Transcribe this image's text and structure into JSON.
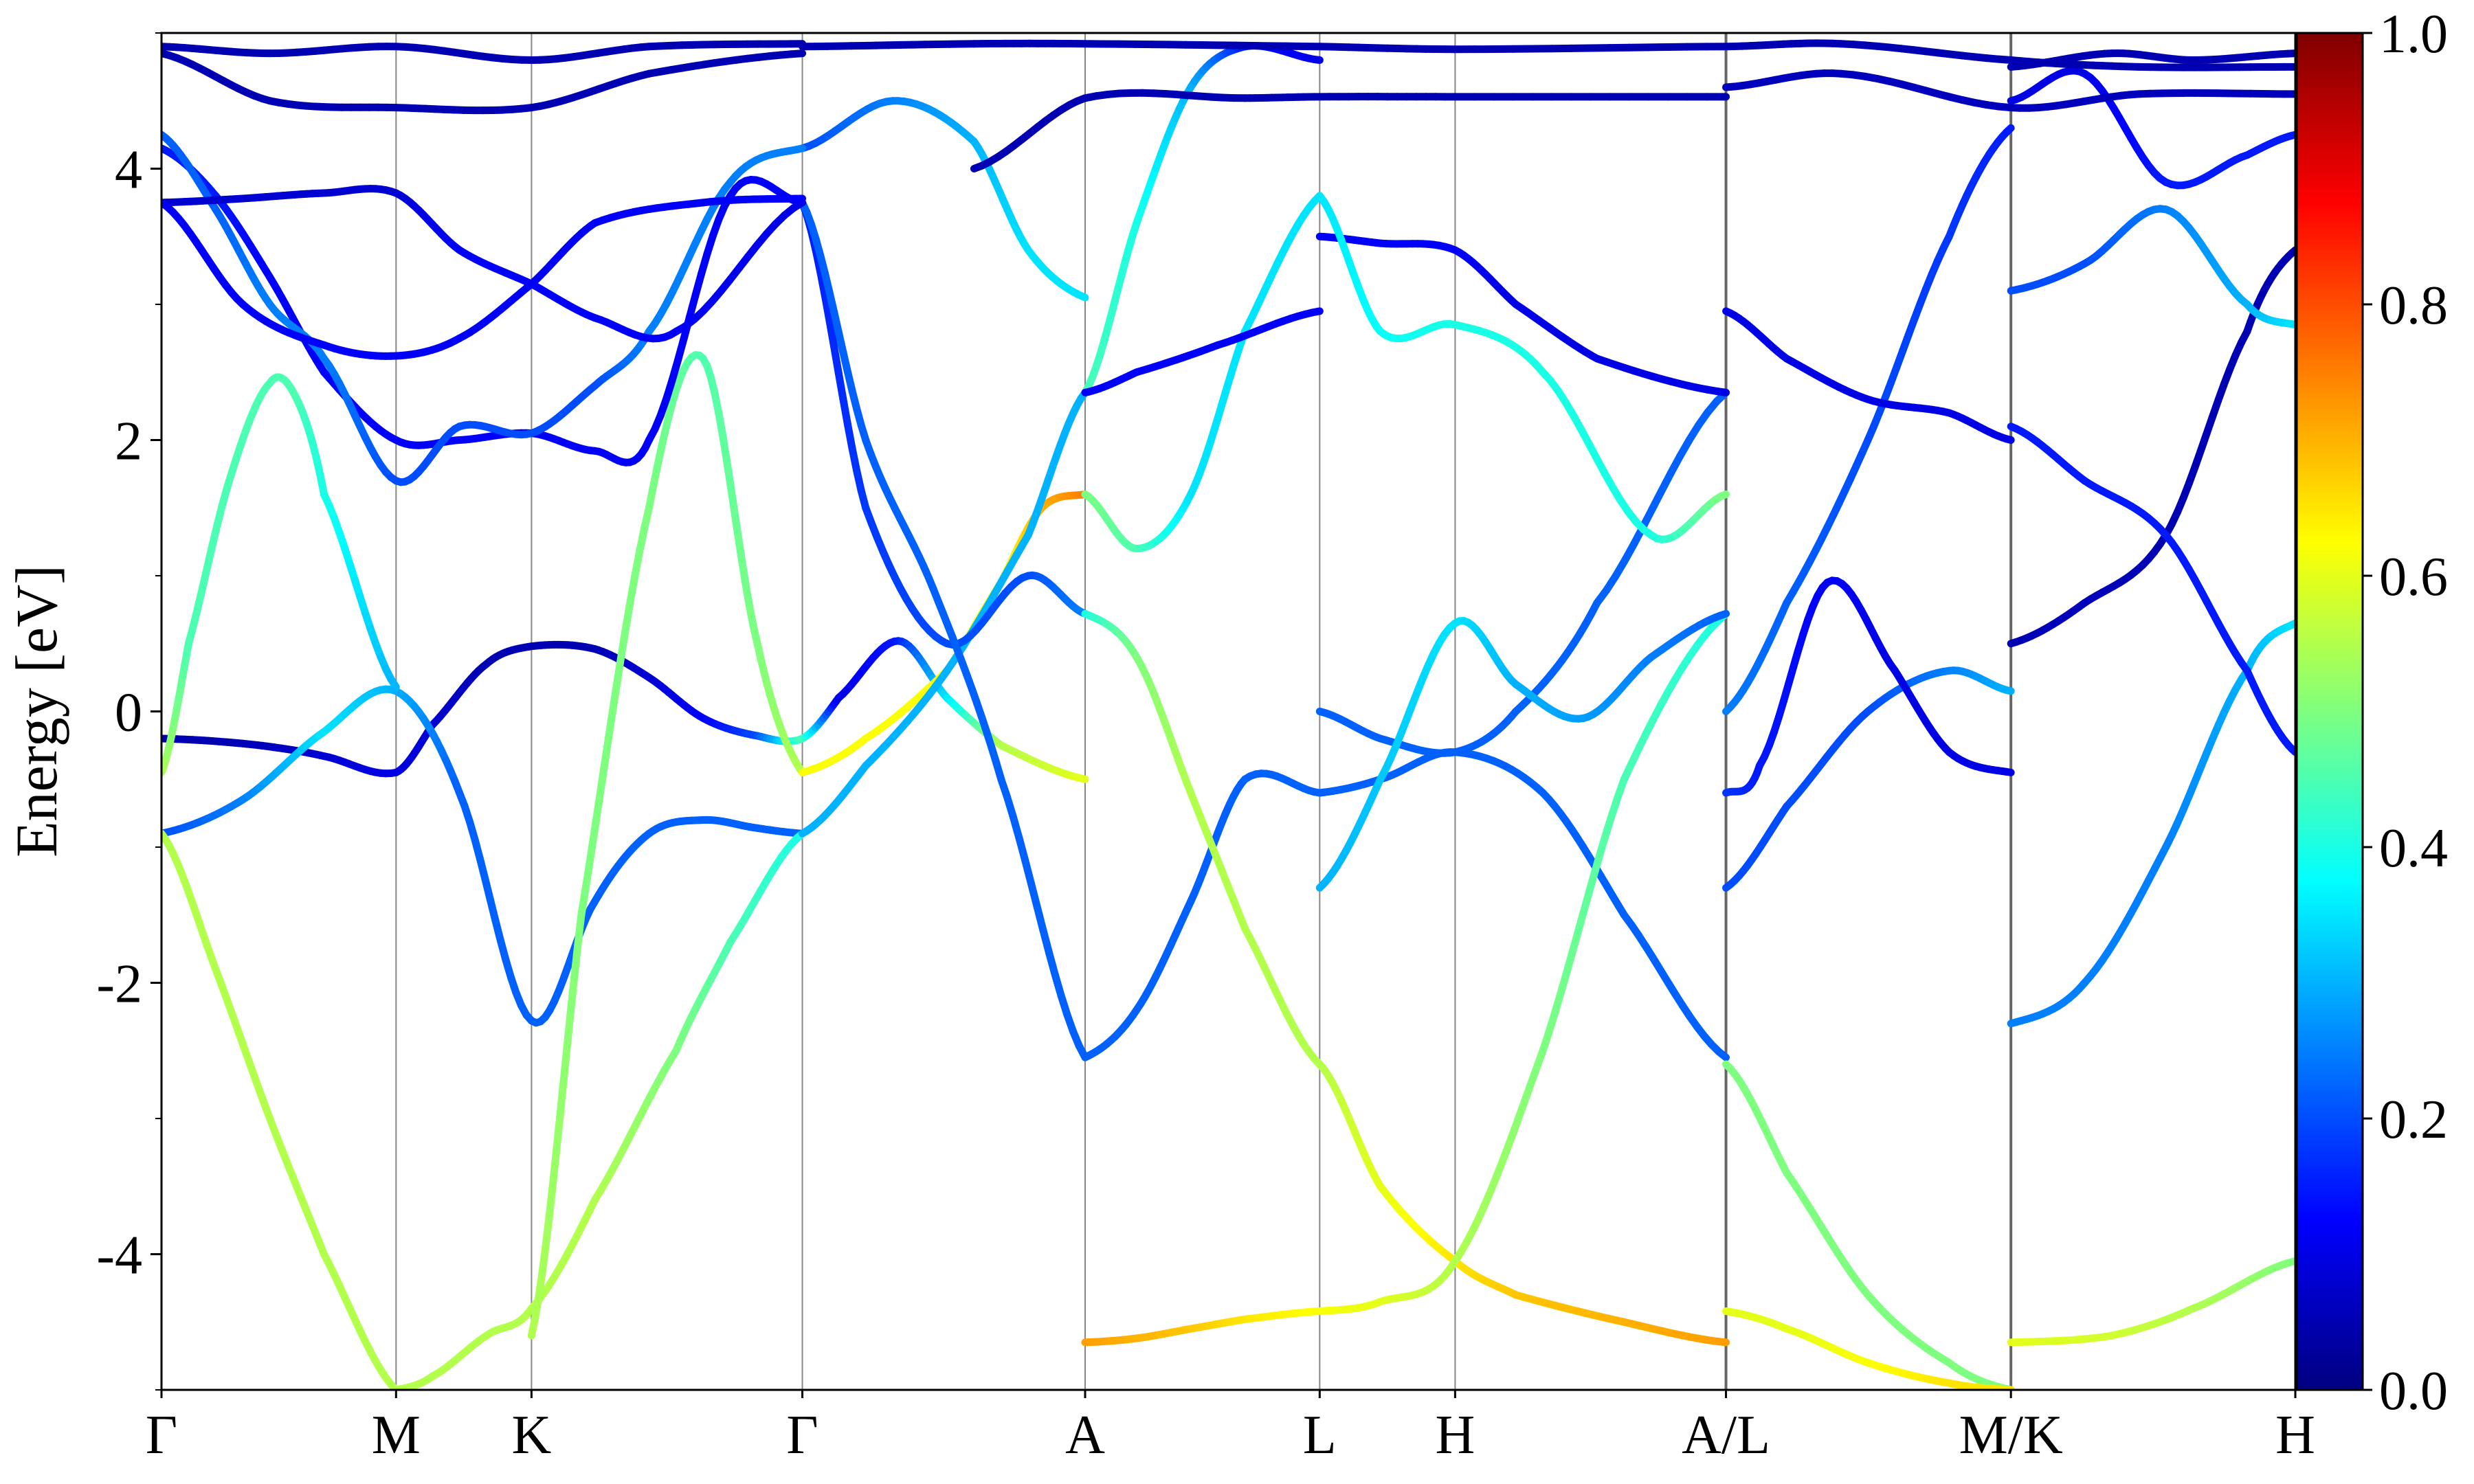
{
  "chart_data": {
    "type": "line",
    "chart_kind": "electronic band structure with projected weight colouring",
    "ylabel": "Energy [eV]",
    "ylim": [
      -5,
      5
    ],
    "y_major_ticks": [
      -4,
      -2,
      0,
      2,
      4
    ],
    "y_major_tick_labels": [
      "-4",
      "-2",
      "0",
      "2",
      "4"
    ],
    "y_minor_ticks": [
      -5,
      -3,
      -1,
      1,
      3,
      5
    ],
    "kpoint_labels": [
      "Γ",
      "M",
      "K",
      "Γ",
      "A",
      "L",
      "H",
      "A/L",
      "M/K",
      "H"
    ],
    "kpoint_positions": [
      0,
      0.866,
      1.366,
      2.366,
      3.41,
      4.276,
      4.776,
      5.776,
      6.828,
      7.878
    ],
    "xlim": [
      0,
      7.878
    ],
    "grid": "vertical lines at k-points",
    "legend": "none",
    "colorbar": {
      "label": "",
      "range": [
        0.0,
        1.0
      ],
      "ticks": [
        0.0,
        0.2,
        0.4,
        0.6,
        0.8,
        1.0
      ],
      "tick_labels": [
        "0.0",
        "0.2",
        "0.4",
        "0.6",
        "0.8",
        "1.0"
      ],
      "colormap": "jet",
      "colormap_stops": [
        "#00007f",
        "#0000ff",
        "#007fff",
        "#00ffff",
        "#7fff7f",
        "#ffff00",
        "#ff7f00",
        "#ff0000",
        "#7f0000"
      ],
      "placement": "right"
    },
    "series": [
      {
        "x": [
          0,
          0.2,
          0.4,
          0.6,
          0.866,
          1.0,
          1.2,
          1.366,
          1.6,
          1.8,
          2.0,
          2.2,
          2.366,
          2.5,
          2.72,
          2.9,
          3.1,
          3.41
        ],
        "y": [
          -0.2,
          -0.22,
          -0.26,
          -0.33,
          -0.45,
          -0.1,
          0.35,
          0.48,
          0.46,
          0.25,
          -0.05,
          -0.18,
          -0.2,
          0.1,
          0.52,
          0.1,
          -0.25,
          -0.5
        ],
        "w": [
          0.05,
          0.05,
          0.06,
          0.08,
          0.1,
          0.08,
          0.05,
          0.05,
          0.05,
          0.08,
          0.12,
          0.2,
          0.45,
          0.1,
          0.15,
          0.35,
          0.55,
          0.6
        ]
      },
      {
        "x": [
          0,
          0.3,
          0.6,
          0.866,
          1.1,
          1.366,
          1.6,
          1.8,
          2.0,
          2.2,
          2.366
        ],
        "y": [
          -0.9,
          -0.65,
          -0.15,
          0.15,
          -0.6,
          -2.28,
          -1.4,
          -0.9,
          -0.8,
          -0.86,
          -0.9
        ],
        "w": [
          0.2,
          0.25,
          0.35,
          0.3,
          0.22,
          0.22,
          0.22,
          0.22,
          0.22,
          0.22,
          0.22
        ]
      },
      {
        "x": [
          0,
          0.2,
          0.4,
          0.6,
          0.866
        ],
        "y": [
          -0.9,
          -1.9,
          -3.0,
          -4.0,
          -5.0
        ],
        "w": [
          0.55,
          0.55,
          0.55,
          0.55,
          0.55
        ]
      },
      {
        "x": [
          0,
          0.1,
          0.25,
          0.4,
          0.5,
          0.6,
          0.866
        ],
        "y": [
          -0.45,
          0.5,
          1.7,
          2.42,
          2.3,
          1.6,
          0.18
        ],
        "w": [
          0.55,
          0.45,
          0.45,
          0.45,
          0.45,
          0.4,
          0.3
        ]
      },
      {
        "x": [
          0.866,
          1.0,
          1.2,
          1.366,
          1.6,
          1.9,
          2.1,
          2.366
        ],
        "y": [
          -5.0,
          -4.9,
          -4.6,
          -4.4,
          -3.6,
          -2.5,
          -1.7,
          -0.9
        ],
        "w": [
          0.55,
          0.55,
          0.55,
          0.55,
          0.55,
          0.5,
          0.45,
          0.4
        ]
      },
      {
        "x": [
          1.366,
          1.55,
          1.8,
          2.0,
          2.2,
          2.366
        ],
        "y": [
          -4.6,
          -1.5,
          1.5,
          2.6,
          0.5,
          -0.45
        ],
        "w": [
          0.55,
          0.5,
          0.5,
          0.45,
          0.5,
          0.55
        ]
      },
      {
        "x": [
          2.366,
          2.6,
          2.9,
          3.1,
          3.25,
          3.41
        ],
        "y": [
          -0.45,
          -0.2,
          0.3,
          0.95,
          1.5,
          1.6
        ],
        "w": [
          0.62,
          0.62,
          0.62,
          0.62,
          0.7,
          0.75
        ]
      },
      {
        "x": [
          2.366,
          2.6,
          2.9,
          3.2,
          3.41
        ],
        "y": [
          -0.9,
          -0.4,
          0.3,
          1.3,
          2.35
        ],
        "w": [
          0.3,
          0.3,
          0.3,
          0.3,
          0.3
        ]
      },
      {
        "x": [
          2.366,
          2.6,
          2.9,
          3.2,
          3.41
        ],
        "y": [
          3.75,
          1.5,
          0.5,
          1.0,
          0.72
        ],
        "w": [
          0.15,
          0.18,
          0.2,
          0.2,
          0.25
        ]
      },
      {
        "x": [
          2.366,
          2.7,
          3.0,
          3.2,
          3.41
        ],
        "y": [
          4.15,
          4.5,
          4.2,
          3.4,
          3.05
        ],
        "w": [
          0.2,
          0.25,
          0.3,
          0.35,
          0.35
        ]
      },
      {
        "x": [
          2.366,
          2.6,
          2.85,
          3.1,
          3.41
        ],
        "y": [
          3.75,
          2.0,
          0.9,
          -0.5,
          -2.55
        ],
        "w": [
          0.22,
          0.22,
          0.22,
          0.22,
          0.22
        ]
      },
      {
        "x": [
          3.41,
          3.6,
          3.8,
          4.0,
          4.276
        ],
        "y": [
          -2.55,
          -2.2,
          -1.4,
          -0.5,
          -0.6
        ],
        "w": [
          0.22,
          0.22,
          0.22,
          0.22,
          0.22
        ]
      },
      {
        "x": [
          3.41,
          3.6,
          3.8,
          4.0,
          4.276
        ],
        "y": [
          0.72,
          0.4,
          -0.6,
          -1.6,
          -2.6
        ],
        "w": [
          0.4,
          0.5,
          0.55,
          0.55,
          0.55
        ]
      },
      {
        "x": [
          3.41,
          3.6,
          3.8,
          4.0,
          4.276
        ],
        "y": [
          -4.65,
          -4.62,
          -4.55,
          -4.48,
          -4.42
        ],
        "w": [
          0.72,
          0.7,
          0.68,
          0.65,
          0.62
        ]
      },
      {
        "x": [
          3.41,
          3.6,
          3.8,
          4.0,
          4.276
        ],
        "y": [
          1.6,
          1.2,
          1.6,
          2.8,
          3.8
        ],
        "w": [
          0.5,
          0.45,
          0.35,
          0.35,
          0.35
        ]
      },
      {
        "x": [
          3.41,
          3.6,
          3.8,
          4.0,
          4.276
        ],
        "y": [
          2.35,
          3.6,
          4.6,
          4.9,
          4.8
        ],
        "w": [
          0.45,
          0.4,
          0.3,
          0.15,
          0.1
        ]
      },
      {
        "x": [
          3.41,
          3.6,
          3.9,
          4.276
        ],
        "y": [
          2.35,
          2.5,
          2.7,
          2.95
        ],
        "w": [
          0.12,
          0.12,
          0.12,
          0.12
        ]
      },
      {
        "x": [
          4.276,
          4.5,
          4.776,
          5.1,
          5.4,
          5.776
        ],
        "y": [
          -0.6,
          -0.5,
          -0.3,
          -0.6,
          -1.5,
          -2.55
        ],
        "w": [
          0.22,
          0.22,
          0.22,
          0.22,
          0.22,
          0.22
        ]
      },
      {
        "x": [
          4.276,
          4.5,
          4.776,
          5.0,
          5.4,
          5.776
        ],
        "y": [
          -2.6,
          -3.5,
          -4.05,
          -4.3,
          -4.5,
          -4.65
        ],
        "w": [
          0.55,
          0.6,
          0.65,
          0.68,
          0.7,
          0.72
        ]
      },
      {
        "x": [
          4.276,
          4.5,
          4.776,
          5.1,
          5.4,
          5.776
        ],
        "y": [
          -4.42,
          -4.35,
          -4.05,
          -2.5,
          -0.5,
          0.72
        ],
        "w": [
          0.62,
          0.6,
          0.55,
          0.5,
          0.45,
          0.4
        ]
      },
      {
        "x": [
          4.276,
          4.5,
          4.776,
          5.0,
          5.3,
          5.776
        ],
        "y": [
          0.0,
          -0.2,
          -0.3,
          0.0,
          0.8,
          2.35
        ],
        "w": [
          0.22,
          0.22,
          0.22,
          0.22,
          0.22,
          0.22
        ]
      },
      {
        "x": [
          4.276,
          4.5,
          4.776,
          5.0,
          5.3,
          5.776
        ],
        "y": [
          3.5,
          3.45,
          3.4,
          3.0,
          2.6,
          2.35
        ],
        "w": [
          0.12,
          0.12,
          0.12,
          0.1,
          0.1,
          0.1
        ]
      },
      {
        "x": [
          4.276,
          4.5,
          4.776,
          5.1,
          5.5,
          5.776
        ],
        "y": [
          3.8,
          2.8,
          2.85,
          2.5,
          1.3,
          1.6
        ],
        "w": [
          0.35,
          0.38,
          0.4,
          0.4,
          0.4,
          0.5
        ]
      },
      {
        "x": [
          4.276,
          4.5,
          4.776,
          5.0,
          5.25,
          5.5,
          5.776
        ],
        "y": [
          -1.3,
          -0.5,
          0.65,
          0.2,
          -0.05,
          0.4,
          0.72
        ],
        "w": [
          0.3,
          0.32,
          0.35,
          0.3,
          0.28,
          0.25,
          0.22
        ]
      },
      {
        "x": [
          5.776,
          6.0,
          6.3,
          6.6,
          6.828
        ],
        "y": [
          -1.3,
          -0.7,
          0.0,
          0.3,
          0.15
        ],
        "w": [
          0.2,
          0.2,
          0.2,
          0.25,
          0.3
        ]
      },
      {
        "x": [
          5.776,
          6.0,
          6.3,
          6.6,
          6.828
        ],
        "y": [
          -2.6,
          -3.4,
          -4.3,
          -4.8,
          -5.0
        ],
        "w": [
          0.5,
          0.5,
          0.5,
          0.5,
          0.5
        ]
      },
      {
        "x": [
          5.776,
          6.0,
          6.3,
          6.6,
          6.828
        ],
        "y": [
          -4.42,
          -4.55,
          -4.8,
          -4.95,
          -5.0
        ],
        "w": [
          0.6,
          0.6,
          0.62,
          0.65,
          0.65
        ]
      },
      {
        "x": [
          5.776,
          5.9,
          6.15,
          6.4,
          6.6,
          6.828
        ],
        "y": [
          -0.6,
          -0.4,
          0.95,
          0.3,
          -0.3,
          -0.45
        ],
        "w": [
          0.18,
          0.15,
          0.12,
          0.1,
          0.1,
          0.1
        ]
      },
      {
        "x": [
          5.776,
          6.0,
          6.3,
          6.6,
          6.828
        ],
        "y": [
          0.0,
          0.8,
          2.0,
          3.5,
          4.3
        ],
        "w": [
          0.25,
          0.22,
          0.2,
          0.18,
          0.15
        ]
      },
      {
        "x": [
          5.776,
          6.0,
          6.3,
          6.6,
          6.828
        ],
        "y": [
          2.95,
          2.6,
          2.3,
          2.2,
          2.0
        ],
        "w": [
          0.1,
          0.1,
          0.1,
          0.1,
          0.1
        ]
      },
      {
        "x": [
          6.828,
          7.1,
          7.4,
          7.7,
          7.878
        ],
        "y": [
          -2.3,
          -2.0,
          -1.0,
          0.3,
          0.65
        ],
        "w": [
          0.25,
          0.25,
          0.25,
          0.3,
          0.35
        ]
      },
      {
        "x": [
          6.828,
          7.2,
          7.5,
          7.878
        ],
        "y": [
          -4.65,
          -4.6,
          -4.4,
          -4.05
        ],
        "w": [
          0.6,
          0.58,
          0.55,
          0.5
        ]
      },
      {
        "x": [
          6.828,
          7.1,
          7.4,
          7.7,
          7.878
        ],
        "y": [
          0.5,
          0.8,
          1.3,
          2.8,
          3.4
        ],
        "w": [
          0.05,
          0.06,
          0.05,
          0.05,
          0.05
        ]
      },
      {
        "x": [
          6.828,
          7.1,
          7.4,
          7.7,
          7.878
        ],
        "y": [
          2.1,
          1.7,
          1.3,
          0.3,
          -0.3
        ],
        "w": [
          0.15,
          0.15,
          0.15,
          0.15,
          0.15
        ]
      },
      {
        "x": [
          6.828,
          7.1,
          7.4,
          7.7,
          7.878
        ],
        "y": [
          3.1,
          3.3,
          3.7,
          3.0,
          2.85
        ],
        "w": [
          0.2,
          0.2,
          0.25,
          0.3,
          0.35
        ]
      },
      {
        "x": [
          6.828,
          7.1,
          7.4,
          7.7,
          7.878
        ],
        "y": [
          4.5,
          4.7,
          3.9,
          4.1,
          4.25
        ],
        "w": [
          0.1,
          0.1,
          0.15,
          0.15,
          0.15
        ]
      },
      {
        "x": [
          6.828,
          7.2,
          7.5,
          7.878
        ],
        "y": [
          4.75,
          4.85,
          4.8,
          4.85
        ],
        "w": [
          0.05,
          0.05,
          0.05,
          0.05
        ]
      },
      {
        "x": [
          0,
          0.2,
          0.4,
          0.6,
          0.866,
          1.1,
          1.366,
          1.6,
          1.8,
          2.1,
          2.366
        ],
        "y": [
          4.15,
          3.8,
          3.2,
          2.5,
          2.0,
          2.0,
          2.05,
          1.92,
          2.0,
          3.8,
          3.75
        ],
        "w": [
          0.15,
          0.15,
          0.12,
          0.12,
          0.12,
          0.12,
          0.12,
          0.12,
          0.12,
          0.12,
          0.12
        ]
      },
      {
        "x": [
          0,
          0.2,
          0.4,
          0.6,
          0.866,
          1.1,
          1.366,
          1.6,
          1.8,
          2.1,
          2.366
        ],
        "y": [
          4.25,
          3.7,
          3.0,
          2.6,
          1.7,
          2.1,
          2.05,
          2.4,
          2.8,
          3.9,
          4.15
        ],
        "w": [
          0.22,
          0.22,
          0.25,
          0.25,
          0.2,
          0.2,
          0.2,
          0.2,
          0.25,
          0.25,
          0.25
        ]
      },
      {
        "x": [
          0,
          0.3,
          0.6,
          0.866,
          1.1,
          1.366,
          1.6,
          1.9,
          2.366
        ],
        "y": [
          3.75,
          3.78,
          3.82,
          3.82,
          3.4,
          3.15,
          2.9,
          2.8,
          3.75
        ],
        "w": [
          0.08,
          0.08,
          0.08,
          0.08,
          0.12,
          0.12,
          0.12,
          0.12,
          0.1
        ]
      },
      {
        "x": [
          0,
          0.3,
          0.6,
          0.866,
          1.1,
          1.366,
          1.6,
          2.0,
          2.366
        ],
        "y": [
          3.75,
          3.0,
          2.7,
          2.62,
          2.75,
          3.15,
          3.6,
          3.75,
          3.78
        ],
        "w": [
          0.12,
          0.12,
          0.12,
          0.12,
          0.12,
          0.12,
          0.12,
          0.12,
          0.12
        ]
      },
      {
        "x": [
          0,
          0.4,
          0.866,
          1.366,
          1.8,
          2.366
        ],
        "y": [
          4.9,
          4.85,
          4.9,
          4.8,
          4.9,
          4.92
        ],
        "w": [
          0.05,
          0.05,
          0.05,
          0.05,
          0.05,
          0.05
        ]
      },
      {
        "x": [
          0,
          0.4,
          0.866,
          1.366,
          1.8,
          2.366
        ],
        "y": [
          4.85,
          4.5,
          4.45,
          4.45,
          4.7,
          4.85
        ],
        "w": [
          0.05,
          0.05,
          0.05,
          0.05,
          0.05,
          0.05
        ]
      },
      {
        "x": [
          2.366,
          3.0,
          3.41,
          4.276,
          4.776,
          5.776
        ],
        "y": [
          4.9,
          4.92,
          4.92,
          4.9,
          4.88,
          4.9
        ],
        "w": [
          0.05,
          0.05,
          0.05,
          0.05,
          0.05,
          0.05
        ]
      },
      {
        "x": [
          3.0,
          3.41,
          4.0,
          4.276,
          4.776,
          5.776
        ],
        "y": [
          4.0,
          4.52,
          4.52,
          4.53,
          4.53,
          4.53
        ],
        "w": [
          0.05,
          0.05,
          0.05,
          0.05,
          0.05,
          0.05
        ]
      },
      {
        "x": [
          5.776,
          6.2,
          6.828,
          7.3,
          7.878
        ],
        "y": [
          4.9,
          4.92,
          4.8,
          4.75,
          4.75
        ],
        "w": [
          0.05,
          0.05,
          0.05,
          0.05,
          0.05
        ]
      },
      {
        "x": [
          5.776,
          6.2,
          6.828,
          7.3,
          7.878
        ],
        "y": [
          4.6,
          4.7,
          4.45,
          4.55,
          4.55
        ],
        "w": [
          0.06,
          0.06,
          0.06,
          0.06,
          0.06
        ]
      }
    ]
  }
}
